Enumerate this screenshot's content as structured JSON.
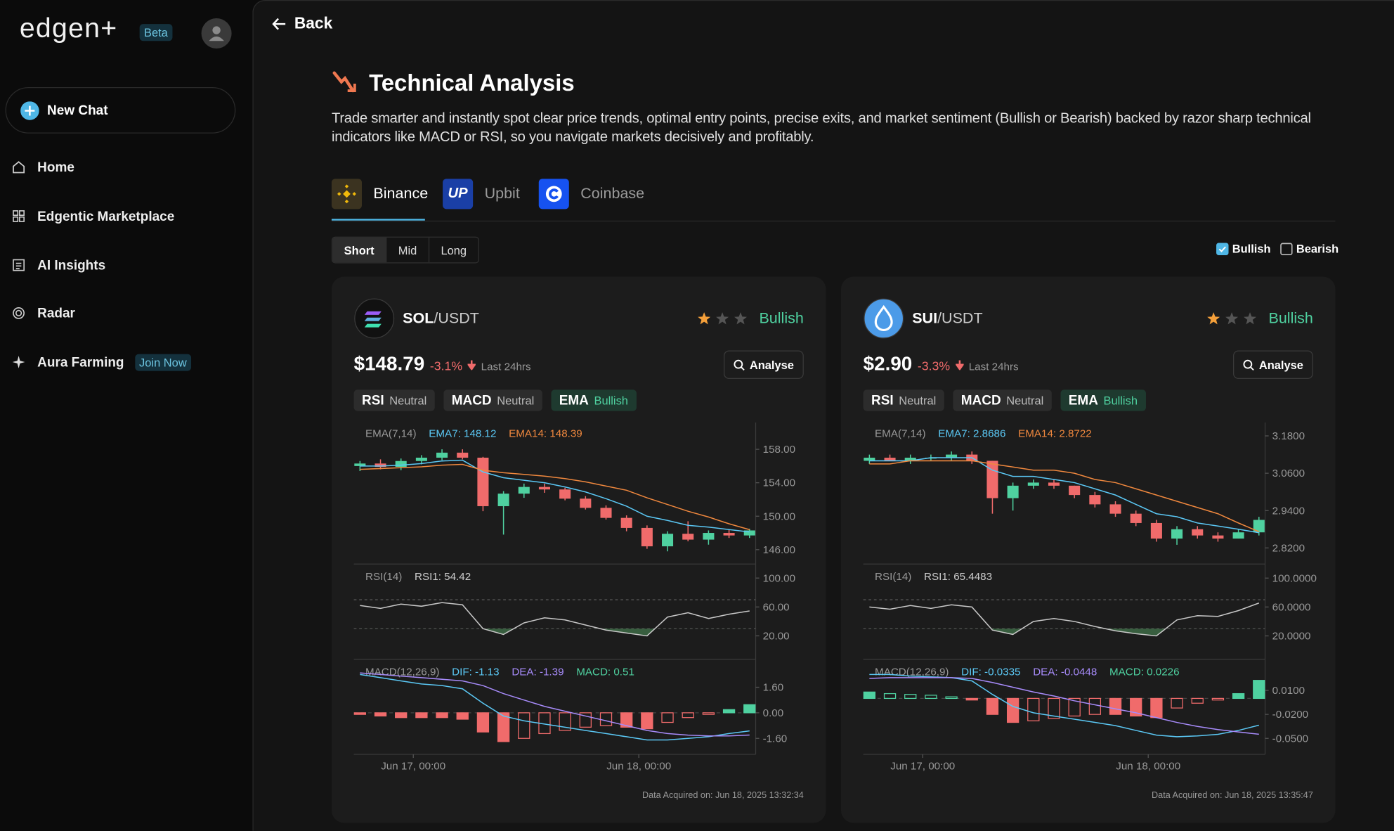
{
  "sidebar": {
    "logo": "edgen+",
    "badge": "Beta",
    "new_chat": "New Chat",
    "nav": [
      {
        "label": "Home"
      },
      {
        "label": "Edgentic Marketplace"
      },
      {
        "label": "AI Insights"
      },
      {
        "label": "Radar"
      },
      {
        "label": "Aura Farming",
        "badge": "Join Now"
      }
    ]
  },
  "header": {
    "back": "Back",
    "title": "Technical Analysis",
    "description": "Trade smarter and instantly spot clear price trends, optimal entry points, precise exits, and market sentiment (Bullish or Bearish) backed by razor sharp technical indicators like MACD or RSI, so you navigate markets decisively and profitably."
  },
  "exchanges": [
    {
      "name": "Binance"
    },
    {
      "name": "Upbit",
      "logo": "UP"
    },
    {
      "name": "Coinbase"
    }
  ],
  "timeframes": [
    "Short",
    "Mid",
    "Long"
  ],
  "filters": [
    {
      "label": "Bullish",
      "checked": true
    },
    {
      "label": "Bearish",
      "checked": false
    }
  ],
  "candle_colors": {
    "up": "#4fd1a0",
    "down": "#f06b6b"
  },
  "cards": [
    {
      "base": "SOL",
      "quote": "/USDT",
      "icon_color": "#111111",
      "rating": 1,
      "max_rating": 3,
      "signal": "Bullish",
      "price": "$148.79",
      "change": "-3.1%",
      "period": "Last 24hrs",
      "action": "Analyse",
      "tags": [
        {
          "name": "RSI",
          "status": "Neutral"
        },
        {
          "name": "MACD",
          "status": "Neutral"
        },
        {
          "name": "EMA",
          "status": "Bullish"
        }
      ],
      "chart": {
        "ema_title": "EMA(7,14)",
        "ema_labels": [
          {
            "text": "EMA7: 148.12",
            "color": "#5bc8f5"
          },
          {
            "text": "EMA14: 148.39",
            "color": "#f0883e"
          }
        ],
        "ylim": [
          144.5,
          161.2
        ],
        "yticks": [
          {
            "value": 158,
            "label": "158.00"
          },
          {
            "value": 154,
            "label": "154.00"
          },
          {
            "value": 150,
            "label": "150.00"
          },
          {
            "value": 146,
            "label": "146.00"
          }
        ],
        "open": [
          156.0,
          156.3,
          155.9,
          156.6,
          157.0,
          157.6,
          157.0,
          151.2,
          152.7,
          153.5,
          153.2,
          152.1,
          151.0,
          149.8,
          148.6,
          146.4,
          147.9,
          147.2,
          148.0,
          147.7
        ],
        "high": [
          156.6,
          156.8,
          156.9,
          157.3,
          158.0,
          158.0,
          157.1,
          153.0,
          153.9,
          153.9,
          153.4,
          152.4,
          151.3,
          150.1,
          148.9,
          148.2,
          149.4,
          148.3,
          148.4,
          148.5
        ],
        "low": [
          155.4,
          155.6,
          155.5,
          156.2,
          156.7,
          156.8,
          150.6,
          147.8,
          152.2,
          152.8,
          151.9,
          150.8,
          149.6,
          148.2,
          146.1,
          145.8,
          147.0,
          146.6,
          147.4,
          147.4
        ],
        "close": [
          156.3,
          155.9,
          156.6,
          157.0,
          157.6,
          157.0,
          151.2,
          152.7,
          153.5,
          153.2,
          152.1,
          151.0,
          149.8,
          148.6,
          146.4,
          147.9,
          147.2,
          148.0,
          147.7,
          148.3
        ],
        "ema7": [
          156.0,
          156.0,
          156.1,
          156.3,
          156.6,
          156.7,
          155.3,
          154.6,
          154.3,
          154.0,
          153.5,
          152.9,
          152.1,
          151.2,
          150.0,
          149.5,
          148.9,
          148.7,
          148.4,
          148.12
        ],
        "ema14": [
          155.6,
          155.7,
          155.8,
          155.9,
          156.1,
          156.2,
          155.5,
          155.2,
          155.0,
          154.8,
          154.5,
          154.1,
          153.6,
          153.1,
          152.2,
          151.4,
          150.6,
          149.9,
          149.1,
          148.39
        ],
        "rsi_title": "RSI(14)",
        "rsi_label": "RSI1: 54.42",
        "rsi_ylim": [
          -11,
          117
        ],
        "rsi_yticks": [
          {
            "value": 100,
            "label": "100.00"
          },
          {
            "value": 60,
            "label": "60.00"
          },
          {
            "value": 20,
            "label": "20.00"
          }
        ],
        "rsi_levels": [
          30,
          70
        ],
        "rsi": [
          62,
          58,
          64,
          61,
          66,
          63,
          30,
          22,
          38,
          45,
          42,
          35,
          28,
          24,
          20,
          46,
          52,
          44,
          50,
          54.42
        ],
        "macd_title": "MACD(12,26,9)",
        "macd_labels": [
          {
            "text": "DIF: -1.13",
            "color": "#5bc8f5"
          },
          {
            "text": "DEA: -1.39",
            "color": "#a78bfa"
          },
          {
            "text": "MACD: 0.51",
            "color": "#4fd1a0"
          }
        ],
        "macd_ylim": [
          -2.6,
          3.3
        ],
        "macd_yticks": [
          {
            "value": 1.6,
            "label": "1.60"
          },
          {
            "value": 0,
            "label": "0.00"
          },
          {
            "value": -1.6,
            "label": "-1.60"
          }
        ],
        "macd": [
          -0.1,
          -0.2,
          -0.3,
          -0.3,
          -0.3,
          -0.4,
          -1.2,
          -1.8,
          -1.6,
          -1.3,
          -1.1,
          -0.9,
          -0.8,
          -0.9,
          -1.0,
          -0.6,
          -0.3,
          -0.1,
          0.2,
          0.51
        ],
        "dif": [
          2.4,
          2.2,
          2.0,
          1.8,
          1.7,
          1.5,
          0.6,
          -0.2,
          -0.5,
          -0.7,
          -0.9,
          -1.1,
          -1.3,
          -1.5,
          -1.7,
          -1.7,
          -1.6,
          -1.5,
          -1.3,
          -1.13
        ],
        "dea": [
          2.5,
          2.4,
          2.3,
          2.2,
          2.1,
          2.0,
          1.7,
          1.2,
          0.8,
          0.4,
          0.1,
          -0.2,
          -0.5,
          -0.8,
          -1.1,
          -1.3,
          -1.4,
          -1.45,
          -1.45,
          -1.39
        ],
        "xlim": [
          -0.3,
          19.3
        ],
        "xticks": [
          {
            "value": 2.6,
            "label": "Jun 17, 00:00"
          },
          {
            "value": 13.6,
            "label": "Jun 18, 00:00"
          }
        ]
      },
      "footer": "Data Acquired on: Jun 18, 2025 13:32:34"
    },
    {
      "base": "SUI",
      "quote": "/USDT",
      "icon_color": "#4c9be8",
      "rating": 1,
      "max_rating": 3,
      "signal": "Bullish",
      "price": "$2.90",
      "change": "-3.3%",
      "period": "Last 24hrs",
      "action": "Analyse",
      "tags": [
        {
          "name": "RSI",
          "status": "Neutral"
        },
        {
          "name": "MACD",
          "status": "Neutral"
        },
        {
          "name": "EMA",
          "status": "Bullish"
        }
      ],
      "chart": {
        "ema_title": "EMA(7,14)",
        "ema_labels": [
          {
            "text": "EMA7: 2.8686",
            "color": "#5bc8f5"
          },
          {
            "text": "EMA14: 2.8722",
            "color": "#f0883e"
          }
        ],
        "ylim": [
          2.774,
          3.223
        ],
        "yticks": [
          {
            "value": 3.18,
            "label": "3.1800"
          },
          {
            "value": 3.06,
            "label": "3.0600"
          },
          {
            "value": 2.94,
            "label": "2.9400"
          },
          {
            "value": 2.82,
            "label": "2.8200"
          }
        ],
        "open": [
          3.1,
          3.11,
          3.1,
          3.11,
          3.11,
          3.12,
          3.1,
          2.98,
          3.02,
          3.03,
          3.02,
          2.99,
          2.96,
          2.93,
          2.9,
          2.85,
          2.88,
          2.86,
          2.85,
          2.87
        ],
        "high": [
          3.12,
          3.12,
          3.12,
          3.12,
          3.13,
          3.13,
          3.1,
          3.03,
          3.04,
          3.04,
          3.02,
          3.0,
          2.97,
          2.94,
          2.91,
          2.89,
          2.89,
          2.87,
          2.88,
          2.92
        ],
        "low": [
          3.09,
          3.1,
          3.09,
          3.1,
          3.1,
          3.09,
          2.93,
          2.94,
          3.01,
          3.01,
          2.98,
          2.95,
          2.92,
          2.89,
          2.84,
          2.83,
          2.85,
          2.84,
          2.85,
          2.86
        ],
        "close": [
          3.11,
          3.1,
          3.11,
          3.11,
          3.12,
          3.1,
          2.98,
          3.02,
          3.03,
          3.02,
          2.99,
          2.96,
          2.93,
          2.9,
          2.85,
          2.88,
          2.86,
          2.85,
          2.87,
          2.91
        ],
        "ema7": [
          3.1,
          3.1,
          3.1,
          3.11,
          3.11,
          3.11,
          3.07,
          3.05,
          3.05,
          3.04,
          3.03,
          3.01,
          2.99,
          2.96,
          2.93,
          2.92,
          2.9,
          2.89,
          2.88,
          2.8686
        ],
        "ema14": [
          3.09,
          3.09,
          3.1,
          3.1,
          3.1,
          3.1,
          3.09,
          3.08,
          3.07,
          3.07,
          3.06,
          3.04,
          3.03,
          3.01,
          2.99,
          2.97,
          2.95,
          2.93,
          2.9,
          2.8722
        ],
        "rsi_title": "RSI(14)",
        "rsi_label": "RSI1: 65.4483",
        "rsi_ylim": [
          -11,
          117
        ],
        "rsi_yticks": [
          {
            "value": 100,
            "label": "100.0000"
          },
          {
            "value": 60,
            "label": "60.0000"
          },
          {
            "value": 20,
            "label": "20.0000"
          }
        ],
        "rsi_levels": [
          30,
          70
        ],
        "rsi": [
          60,
          57,
          62,
          58,
          63,
          60,
          28,
          22,
          40,
          44,
          40,
          33,
          27,
          23,
          20,
          42,
          48,
          47,
          55,
          65.4483
        ],
        "macd_title": "MACD(12,26,9)",
        "macd_labels": [
          {
            "text": "DIF: -0.0335",
            "color": "#5bc8f5"
          },
          {
            "text": "DEA: -0.0448",
            "color": "#a78bfa"
          },
          {
            "text": "MACD: 0.0226",
            "color": "#4fd1a0"
          }
        ],
        "macd_ylim": [
          -0.07,
          0.048
        ],
        "macd_yticks": [
          {
            "value": 0.01,
            "label": "0.0100"
          },
          {
            "value": -0.02,
            "label": "-0.0200"
          },
          {
            "value": -0.05,
            "label": "-0.0500"
          }
        ],
        "macd": [
          0.008,
          0.006,
          0.005,
          0.004,
          0.002,
          -0.002,
          -0.02,
          -0.03,
          -0.028,
          -0.025,
          -0.022,
          -0.02,
          -0.02,
          -0.022,
          -0.024,
          -0.012,
          -0.006,
          -0.002,
          0.006,
          0.0226
        ],
        "dif": [
          0.03,
          0.03,
          0.028,
          0.027,
          0.026,
          0.022,
          0.005,
          -0.01,
          -0.018,
          -0.022,
          -0.026,
          -0.03,
          -0.034,
          -0.04,
          -0.046,
          -0.048,
          -0.047,
          -0.045,
          -0.04,
          -0.0335
        ],
        "dea": [
          0.025,
          0.026,
          0.026,
          0.026,
          0.026,
          0.025,
          0.02,
          0.014,
          0.008,
          0.003,
          -0.003,
          -0.008,
          -0.013,
          -0.018,
          -0.024,
          -0.03,
          -0.035,
          -0.039,
          -0.042,
          -0.0448
        ],
        "xlim": [
          -0.3,
          19.3
        ],
        "xticks": [
          {
            "value": 2.6,
            "label": "Jun 17, 00:00"
          },
          {
            "value": 13.6,
            "label": "Jun 18, 00:00"
          }
        ]
      },
      "footer": "Data Acquired on: Jun 18, 2025 13:35:47"
    }
  ]
}
